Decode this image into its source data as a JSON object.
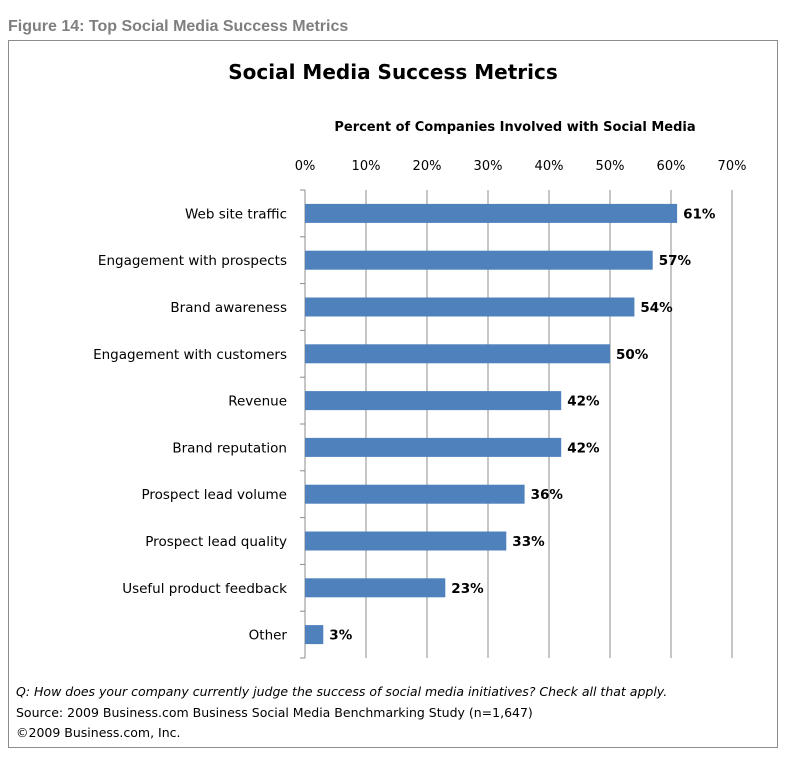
{
  "figure_caption": "Figure 14: Top Social Media Success Metrics",
  "chart_data": {
    "type": "bar",
    "orientation": "horizontal",
    "title": "Social Media Success Metrics",
    "xlabel": "Percent of Companies Involved with Social Media",
    "ylabel": "",
    "xlim": [
      0,
      70
    ],
    "x_ticks": [
      "0%",
      "10%",
      "20%",
      "30%",
      "40%",
      "50%",
      "60%",
      "70%"
    ],
    "x_axis_position": "top",
    "grid": true,
    "bar_color": "#4f81bd",
    "categories": [
      "Web site traffic",
      "Engagement with prospects",
      "Brand awareness",
      "Engagement with customers",
      "Revenue",
      "Brand reputation",
      "Prospect lead volume",
      "Prospect lead quality",
      "Useful product feedback",
      "Other"
    ],
    "values": [
      61,
      57,
      54,
      50,
      42,
      42,
      36,
      33,
      23,
      3
    ],
    "data_labels": [
      "61%",
      "57%",
      "54%",
      "50%",
      "42%",
      "42%",
      "36%",
      "33%",
      "23%",
      "3%"
    ]
  },
  "notes": {
    "question": "Q: How does your company currently judge the success of social media initiatives? Check all that apply.",
    "source": "Source: 2009 Business.com Business Social Media Benchmarking Study (n=1,647)",
    "copyright": "©2009 Business.com, Inc."
  }
}
